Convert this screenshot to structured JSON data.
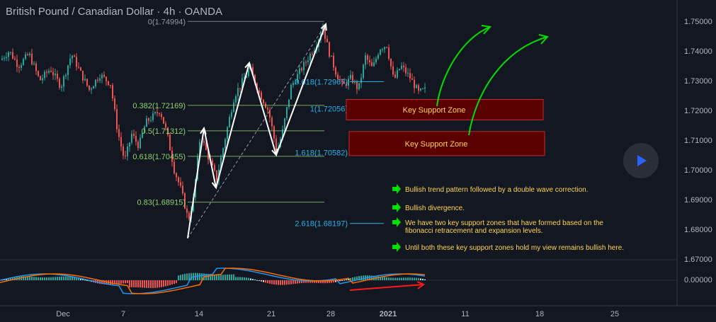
{
  "title": "British Pound / Canadian Dollar · 4h · OANDA",
  "colors": {
    "background": "#131722",
    "bull": "#26a69a",
    "bear": "#ef5350",
    "fib_green": "#8fd16b",
    "fib_blue": "#2bb3e6",
    "zone_fill": "#5a0000",
    "zone_border": "#c62828",
    "zone_text": "#ffd54f",
    "arrow_green": "#00e000",
    "macd_line": "#2196f3",
    "signal_line": "#ff6d00",
    "divergence_arrow": "#ff1a1a"
  },
  "play_button": {
    "icon": "play-icon"
  },
  "chart_data": {
    "type": "candlestick",
    "title": "British Pound / Canadian Dollar · 4h · OANDA",
    "ylim": [
      1.67,
      1.755
    ],
    "y_ticks": [
      "1.75000",
      "1.74000",
      "1.73000",
      "1.72000",
      "1.71000",
      "1.70000",
      "1.69000",
      "1.68000",
      "1.67000"
    ],
    "x_ticks": [
      "Dec",
      "7",
      "14",
      "21",
      "28",
      "2021",
      "11",
      "18",
      "25"
    ],
    "price_path": [
      [
        0,
        1.737
      ],
      [
        12,
        1.74
      ],
      [
        25,
        1.735
      ],
      [
        40,
        1.739
      ],
      [
        55,
        1.73
      ],
      [
        70,
        1.734
      ],
      [
        85,
        1.728
      ],
      [
        100,
        1.739
      ],
      [
        112,
        1.733
      ],
      [
        125,
        1.727
      ],
      [
        140,
        1.732
      ],
      [
        155,
        1.729
      ],
      [
        165,
        1.713
      ],
      [
        175,
        1.703
      ],
      [
        185,
        1.712
      ],
      [
        195,
        1.708
      ],
      [
        205,
        1.716
      ],
      [
        215,
        1.718
      ],
      [
        225,
        1.72
      ],
      [
        235,
        1.712
      ],
      [
        245,
        1.7
      ],
      [
        255,
        1.693
      ],
      [
        265,
        1.683
      ],
      [
        272,
        1.69
      ],
      [
        282,
        1.712
      ],
      [
        292,
        1.705
      ],
      [
        305,
        1.697
      ],
      [
        318,
        1.712
      ],
      [
        330,
        1.725
      ],
      [
        342,
        1.73
      ],
      [
        352,
        1.734
      ],
      [
        365,
        1.726
      ],
      [
        378,
        1.72
      ],
      [
        390,
        1.706
      ],
      [
        398,
        1.713
      ],
      [
        410,
        1.728
      ],
      [
        422,
        1.733
      ],
      [
        435,
        1.738
      ],
      [
        445,
        1.742
      ],
      [
        455,
        1.748
      ],
      [
        463,
        1.74
      ],
      [
        473,
        1.733
      ],
      [
        483,
        1.728
      ],
      [
        495,
        1.731
      ],
      [
        505,
        1.727
      ],
      [
        515,
        1.738
      ],
      [
        525,
        1.734
      ],
      [
        535,
        1.741
      ],
      [
        545,
        1.742
      ],
      [
        555,
        1.73
      ],
      [
        565,
        1.735
      ],
      [
        578,
        1.731
      ],
      [
        590,
        1.726
      ],
      [
        600,
        1.727
      ]
    ],
    "fib_levels": [
      {
        "label": "0(1.74994)",
        "value": 1.74994,
        "group": "retracement"
      },
      {
        "label": "0.382(1.72169)",
        "value": 1.72169,
        "group": "retracement"
      },
      {
        "label": "0.5(1.71312)",
        "value": 1.71312,
        "group": "retracement"
      },
      {
        "label": "0.618(1.70455)",
        "value": 1.70455,
        "group": "retracement"
      },
      {
        "label": "0.83(1.68915)",
        "value": 1.68915,
        "group": "retracement"
      },
      {
        "label": "0.618(1.72967)",
        "value": 1.72967,
        "group": "expansion"
      },
      {
        "label": "1(1.72056)",
        "value": 1.72056,
        "group": "expansion"
      },
      {
        "label": "1.618(1.70582)",
        "value": 1.70582,
        "group": "expansion"
      },
      {
        "label": "2.618(1.68197)",
        "value": 1.68197,
        "group": "expansion"
      }
    ],
    "support_zones": [
      {
        "label": "Key Support Zone",
        "top": 1.7237,
        "bottom": 1.7168
      },
      {
        "label": "Key Support Zone",
        "top": 1.7129,
        "bottom": 1.7048
      }
    ],
    "zigzag": [
      [
        265,
        1.677
      ],
      [
        288,
        1.714
      ],
      [
        305,
        1.694
      ],
      [
        352,
        1.736
      ],
      [
        390,
        1.705
      ],
      [
        460,
        1.749
      ]
    ],
    "macd": {
      "label": "0.00000",
      "zero": 0
    }
  },
  "notes": [
    {
      "text": "Bullish trend pattern followed by a double wave correction."
    },
    {
      "text": "Bullish divergence."
    },
    {
      "text": "We have two key support zones that have formed based on the fibonacci retracement and expansion levels."
    },
    {
      "text": "Until both these key support zones hold my view remains bullish here."
    }
  ]
}
